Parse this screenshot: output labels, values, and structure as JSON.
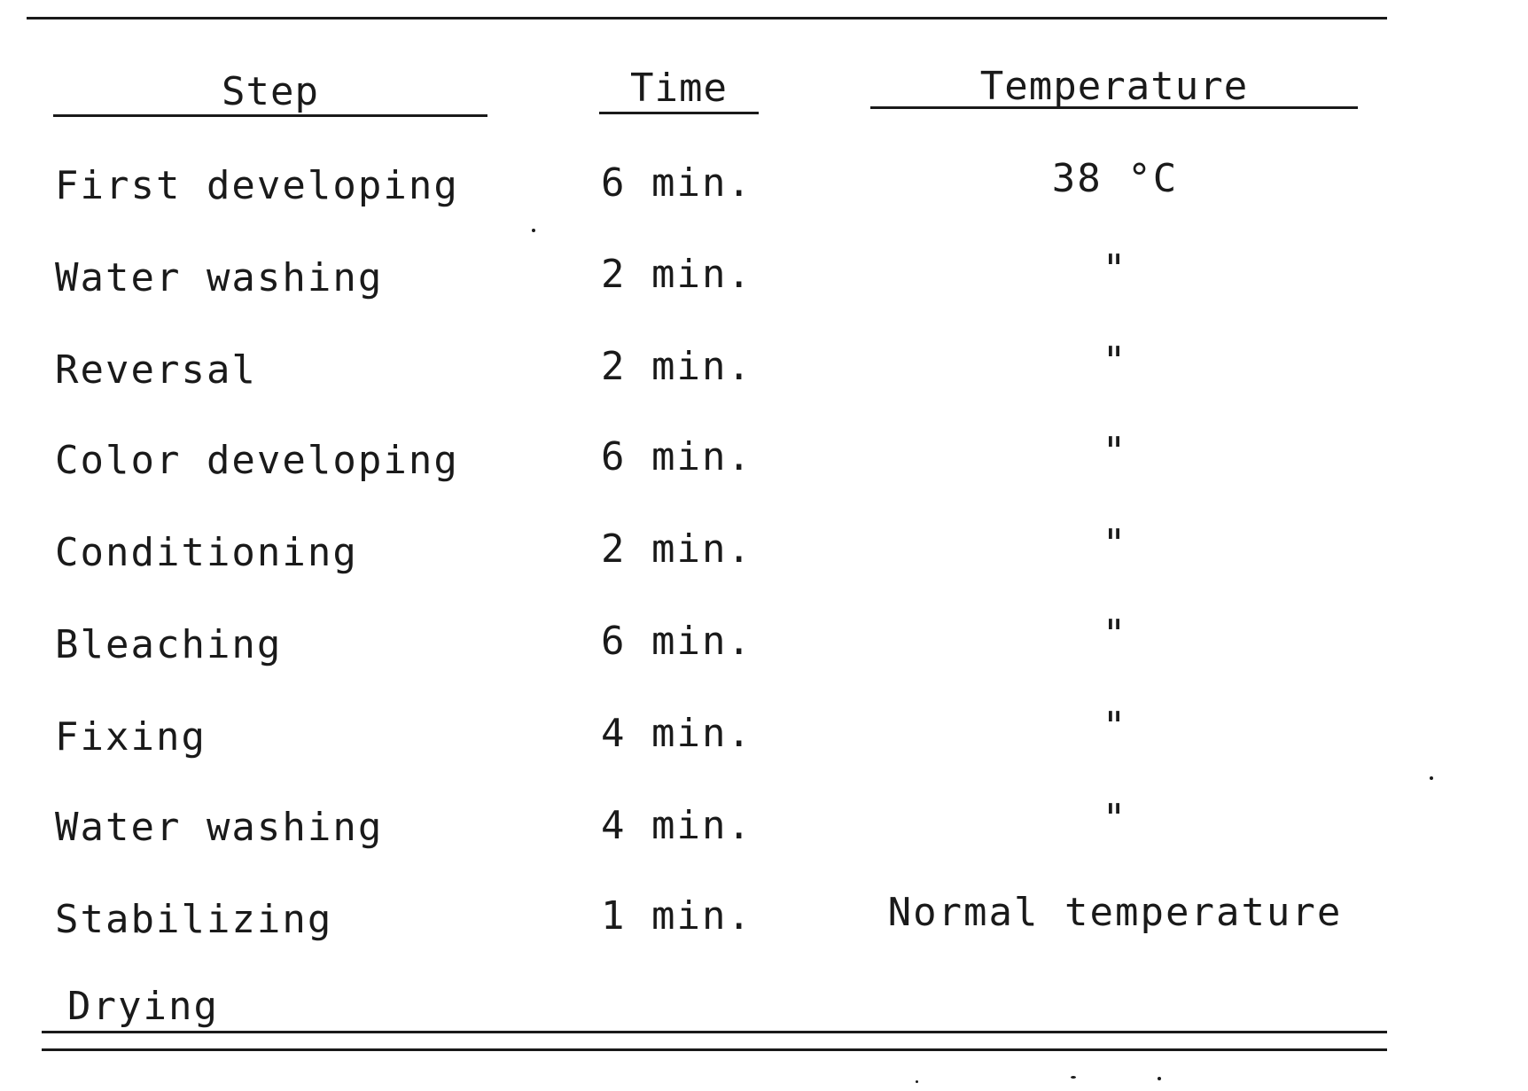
{
  "table": {
    "headers": {
      "step": "Step",
      "time": "Time",
      "temperature": "Temperature"
    },
    "rows": [
      {
        "step": "First developing",
        "time": "6 min.",
        "temperature": "38 °C"
      },
      {
        "step": "Water washing",
        "time": "2 min.",
        "temperature": "\""
      },
      {
        "step": "Reversal",
        "time": "2 min.",
        "temperature": "\""
      },
      {
        "step": "Color developing",
        "time": "6 min.",
        "temperature": "\""
      },
      {
        "step": "Conditioning",
        "time": "2 min.",
        "temperature": "\""
      },
      {
        "step": "Bleaching",
        "time": "6 min.",
        "temperature": "\""
      },
      {
        "step": "Fixing",
        "time": "4 min.",
        "temperature": "\""
      },
      {
        "step": "Water washing",
        "time": "4 min.",
        "temperature": "\""
      },
      {
        "step": "Stabilizing",
        "time": "1 min.",
        "temperature": "Normal temperature"
      },
      {
        "step": "Drying",
        "time": "",
        "temperature": ""
      }
    ]
  }
}
